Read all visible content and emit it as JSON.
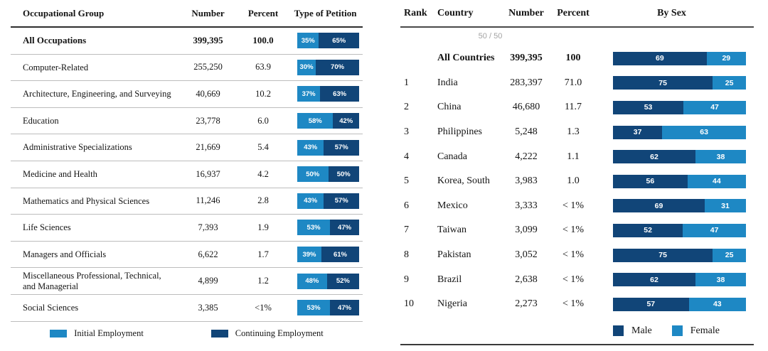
{
  "colors": {
    "light_blue": "#1E88C4",
    "dark_blue": "#114578",
    "muted_gray": "#A3A3A3"
  },
  "left_table": {
    "headers": {
      "group": "Occupational Group",
      "number": "Number",
      "percent": "Percent",
      "petition": "Type of Petition"
    },
    "rows": [
      {
        "group": "All Occupations",
        "number": "399,395",
        "percent": "100.0",
        "initial": 35,
        "continuing": 65,
        "initial_label": "35%",
        "continuing_label": "65%",
        "bold": true
      },
      {
        "group": "Computer-Related",
        "number": "255,250",
        "percent": "63.9",
        "initial": 30,
        "continuing": 70,
        "initial_label": "30%",
        "continuing_label": "70%",
        "bold": false
      },
      {
        "group": "Architecture, Engineering, and Surveying",
        "number": "40,669",
        "percent": "10.2",
        "initial": 37,
        "continuing": 63,
        "initial_label": "37%",
        "continuing_label": "63%",
        "bold": false
      },
      {
        "group": "Education",
        "number": "23,778",
        "percent": "6.0",
        "initial": 58,
        "continuing": 42,
        "initial_label": "58%",
        "continuing_label": "42%",
        "bold": false
      },
      {
        "group": "Administrative Specializations",
        "number": "21,669",
        "percent": "5.4",
        "initial": 43,
        "continuing": 57,
        "initial_label": "43%",
        "continuing_label": "57%",
        "bold": false
      },
      {
        "group": "Medicine and Health",
        "number": "16,937",
        "percent": "4.2",
        "initial": 50,
        "continuing": 50,
        "initial_label": "50%",
        "continuing_label": "50%",
        "bold": false
      },
      {
        "group": "Mathematics and Physical Sciences",
        "number": "11,246",
        "percent": "2.8",
        "initial": 43,
        "continuing": 57,
        "initial_label": "43%",
        "continuing_label": "57%",
        "bold": false
      },
      {
        "group": "Life Sciences",
        "number": "7,393",
        "percent": "1.9",
        "initial": 53,
        "continuing": 47,
        "initial_label": "53%",
        "continuing_label": "47%",
        "bold": false
      },
      {
        "group": "Managers and Officials",
        "number": "6,622",
        "percent": "1.7",
        "initial": 39,
        "continuing": 61,
        "initial_label": "39%",
        "continuing_label": "61%",
        "bold": false
      },
      {
        "group": "Miscellaneous Professional, Technical, and Managerial",
        "number": "4,899",
        "percent": "1.2",
        "initial": 48,
        "continuing": 52,
        "initial_label": "48%",
        "continuing_label": "52%",
        "bold": false
      },
      {
        "group": "Social Sciences",
        "number": "3,385",
        "percent": "<1%",
        "initial": 53,
        "continuing": 47,
        "initial_label": "53%",
        "continuing_label": "47%",
        "bold": false
      }
    ],
    "legend": {
      "initial": "Initial Employment",
      "continuing": "Continuing Employment"
    }
  },
  "right_table": {
    "headers": {
      "rank": "Rank",
      "country": "Country",
      "number": "Number",
      "percent": "Percent",
      "by_sex": "By Sex"
    },
    "reference_label": "50 / 50",
    "rows": [
      {
        "rank": "",
        "country": "All Countries",
        "number": "399,395",
        "percent": "100",
        "male": 69,
        "female": 29,
        "male_label": "69",
        "female_label": "29",
        "bold": true
      },
      {
        "rank": "1",
        "country": "India",
        "number": "283,397",
        "percent": "71.0",
        "male": 75,
        "female": 25,
        "male_label": "75",
        "female_label": "25",
        "bold": false
      },
      {
        "rank": "2",
        "country": "China",
        "number": "46,680",
        "percent": "11.7",
        "male": 53,
        "female": 47,
        "male_label": "53",
        "female_label": "47",
        "bold": false
      },
      {
        "rank": "3",
        "country": "Philippines",
        "number": "5,248",
        "percent": "1.3",
        "male": 37,
        "female": 63,
        "male_label": "37",
        "female_label": "63",
        "bold": false
      },
      {
        "rank": "4",
        "country": "Canada",
        "number": "4,222",
        "percent": "1.1",
        "male": 62,
        "female": 38,
        "male_label": "62",
        "female_label": "38",
        "bold": false
      },
      {
        "rank": "5",
        "country": "Korea, South",
        "number": "3,983",
        "percent": "1.0",
        "male": 56,
        "female": 44,
        "male_label": "56",
        "female_label": "44",
        "bold": false
      },
      {
        "rank": "6",
        "country": "Mexico",
        "number": "3,333",
        "percent": "< 1%",
        "male": 69,
        "female": 31,
        "male_label": "69",
        "female_label": "31",
        "bold": false
      },
      {
        "rank": "7",
        "country": "Taiwan",
        "number": "3,099",
        "percent": "< 1%",
        "male": 52,
        "female": 47,
        "male_label": "52",
        "female_label": "47",
        "bold": false
      },
      {
        "rank": "8",
        "country": "Pakistan",
        "number": "3,052",
        "percent": "< 1%",
        "male": 75,
        "female": 25,
        "male_label": "75",
        "female_label": "25",
        "bold": false
      },
      {
        "rank": "9",
        "country": "Brazil",
        "number": "2,638",
        "percent": "< 1%",
        "male": 62,
        "female": 38,
        "male_label": "62",
        "female_label": "38",
        "bold": false
      },
      {
        "rank": "10",
        "country": "Nigeria",
        "number": "2,273",
        "percent": "< 1%",
        "male": 57,
        "female": 43,
        "male_label": "57",
        "female_label": "43",
        "bold": false
      }
    ],
    "legend": {
      "male": "Male",
      "female": "Female"
    }
  },
  "chart_data": [
    {
      "type": "bar",
      "subtype": "horizontal-stacked-100pct",
      "title": "Type of Petition by Occupational Group",
      "categories": [
        "All Occupations",
        "Computer-Related",
        "Architecture, Engineering, and Surveying",
        "Education",
        "Administrative Specializations",
        "Medicine and Health",
        "Mathematics and Physical Sciences",
        "Life Sciences",
        "Managers and Officials",
        "Miscellaneous Professional, Technical, and Managerial",
        "Social Sciences"
      ],
      "series": [
        {
          "name": "Initial Employment",
          "color": "#1E88C4",
          "values": [
            35,
            30,
            37,
            58,
            43,
            50,
            43,
            53,
            39,
            48,
            53
          ]
        },
        {
          "name": "Continuing Employment",
          "color": "#114578",
          "values": [
            65,
            70,
            63,
            42,
            57,
            50,
            57,
            47,
            61,
            52,
            47
          ]
        }
      ],
      "table_columns": [
        "Number",
        "Percent"
      ],
      "numbers": [
        "399,395",
        "255,250",
        "40,669",
        "23,778",
        "21,669",
        "16,937",
        "11,246",
        "7,393",
        "6,622",
        "4,899",
        "3,385"
      ],
      "percents": [
        "100.0",
        "63.9",
        "10.2",
        "6.0",
        "5.4",
        "4.2",
        "2.8",
        "1.9",
        "1.7",
        "1.2",
        "<1%"
      ],
      "legend_position": "bottom",
      "grid": false
    },
    {
      "type": "bar",
      "subtype": "horizontal-stacked-100pct",
      "title": "By Sex by Country of Birth",
      "annotation": "50 / 50",
      "categories": [
        "All Countries",
        "India",
        "China",
        "Philippines",
        "Canada",
        "Korea, South",
        "Mexico",
        "Taiwan",
        "Pakistan",
        "Brazil",
        "Nigeria"
      ],
      "ranks": [
        "",
        "1",
        "2",
        "3",
        "4",
        "5",
        "6",
        "7",
        "8",
        "9",
        "10"
      ],
      "series": [
        {
          "name": "Male",
          "color": "#114578",
          "values": [
            69,
            75,
            53,
            37,
            62,
            56,
            69,
            52,
            75,
            62,
            57
          ]
        },
        {
          "name": "Female",
          "color": "#1E88C4",
          "values": [
            29,
            25,
            47,
            63,
            38,
            44,
            31,
            47,
            25,
            38,
            43
          ]
        }
      ],
      "table_columns": [
        "Rank",
        "Number",
        "Percent"
      ],
      "numbers": [
        "399,395",
        "283,397",
        "46,680",
        "5,248",
        "4,222",
        "3,983",
        "3,333",
        "3,099",
        "3,052",
        "2,638",
        "2,273"
      ],
      "percents": [
        "100",
        "71.0",
        "11.7",
        "1.3",
        "1.1",
        "1.0",
        "< 1%",
        "< 1%",
        "< 1%",
        "< 1%",
        "< 1%"
      ],
      "legend_position": "bottom",
      "grid": false
    }
  ]
}
